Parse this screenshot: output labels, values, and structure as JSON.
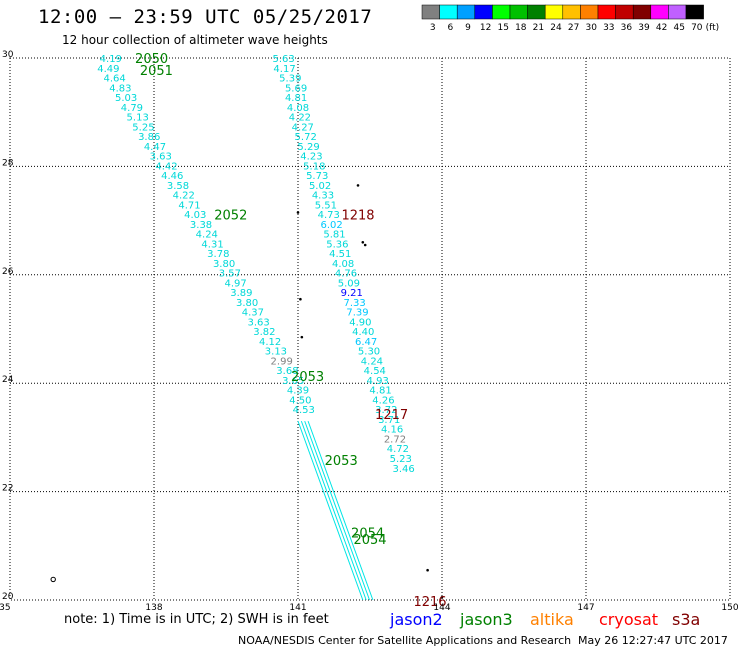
{
  "header": {
    "title": "12:00 – 23:59 UTC 05/25/2017",
    "subtitle": "12 hour collection of altimeter wave heights"
  },
  "color_scale": {
    "unit": "(ft)",
    "bins": [
      {
        "label": "3",
        "color": "#808080"
      },
      {
        "label": "6",
        "color": "#00ffff"
      },
      {
        "label": "9",
        "color": "#00a0ff"
      },
      {
        "label": "12",
        "color": "#0000ff"
      },
      {
        "label": "15",
        "color": "#00ff00"
      },
      {
        "label": "18",
        "color": "#00c000"
      },
      {
        "label": "21",
        "color": "#008000"
      },
      {
        "label": "24",
        "color": "#ffff00"
      },
      {
        "label": "27",
        "color": "#ffc000"
      },
      {
        "label": "30",
        "color": "#ff8000"
      },
      {
        "label": "33",
        "color": "#ff0000"
      },
      {
        "label": "36",
        "color": "#c00000"
      },
      {
        "label": "39",
        "color": "#800000"
      },
      {
        "label": "42",
        "color": "#ff00ff"
      },
      {
        "label": "45",
        "color": "#c060ff"
      },
      {
        "label": "70",
        "color": "#000000"
      }
    ]
  },
  "chart_data": {
    "type": "scatter",
    "xlim": [
      135,
      150
    ],
    "ylim": [
      20,
      30
    ],
    "x_ticks": [
      "135",
      "138",
      "141",
      "144",
      "147",
      "150"
    ],
    "y_ticks": [
      "20",
      "22",
      "24",
      "26",
      "28",
      "30"
    ],
    "grid": true,
    "tracks": [
      {
        "points": [
          [
            137.1,
            30.0,
            "4.19"
          ],
          [
            137.05,
            29.82,
            "4.49"
          ],
          [
            137.18,
            29.64,
            "4.64"
          ],
          [
            137.3,
            29.46,
            "4.83"
          ],
          [
            137.42,
            29.28,
            "5.03"
          ],
          [
            137.54,
            29.1,
            "4.79"
          ],
          [
            137.66,
            28.92,
            "5.13"
          ],
          [
            137.78,
            28.74,
            "5.25"
          ],
          [
            137.9,
            28.56,
            "3.86"
          ],
          [
            138.02,
            28.38,
            "4.47"
          ],
          [
            138.14,
            28.2,
            "3.63"
          ],
          [
            138.26,
            28.02,
            "4.42"
          ],
          [
            138.38,
            27.84,
            "4.46"
          ],
          [
            138.5,
            27.66,
            "3.58"
          ],
          [
            138.62,
            27.48,
            "4.22"
          ],
          [
            138.74,
            27.3,
            "4.71"
          ],
          [
            138.86,
            27.12,
            "4.03"
          ],
          [
            138.98,
            26.94,
            "3.38"
          ],
          [
            139.1,
            26.76,
            "4.24"
          ],
          [
            139.22,
            26.58,
            "4.31"
          ],
          [
            139.34,
            26.4,
            "3.78"
          ],
          [
            139.46,
            26.22,
            "3.80"
          ],
          [
            139.58,
            26.04,
            "3.57"
          ],
          [
            139.7,
            25.86,
            "4.97"
          ],
          [
            139.82,
            25.68,
            "3.89"
          ],
          [
            139.94,
            25.5,
            "3.80"
          ],
          [
            140.06,
            25.32,
            "4.37"
          ],
          [
            140.18,
            25.14,
            "3.63"
          ],
          [
            140.3,
            24.96,
            "3.82"
          ],
          [
            140.42,
            24.78,
            "4.12"
          ],
          [
            140.54,
            24.6,
            "3.13"
          ],
          [
            140.66,
            24.42,
            "2.99"
          ],
          [
            140.78,
            24.24,
            "3.68"
          ],
          [
            140.9,
            24.06,
            "3.65"
          ],
          [
            141.0,
            23.88,
            "4.39"
          ],
          [
            141.05,
            23.7,
            "4.50"
          ],
          [
            141.12,
            23.52,
            "4.53"
          ]
        ]
      },
      {
        "points": [
          [
            140.7,
            30.0,
            "5.63"
          ],
          [
            140.72,
            29.82,
            "4.17"
          ],
          [
            140.84,
            29.64,
            "5.39"
          ],
          [
            140.96,
            29.46,
            "5.69"
          ],
          [
            140.96,
            29.28,
            "4.81"
          ],
          [
            141.0,
            29.1,
            "4.08"
          ],
          [
            141.04,
            28.92,
            "4.22"
          ],
          [
            141.1,
            28.74,
            "4.27"
          ],
          [
            141.16,
            28.56,
            "5.72"
          ],
          [
            141.22,
            28.38,
            "5.29"
          ],
          [
            141.28,
            28.2,
            "4.23"
          ],
          [
            141.34,
            28.02,
            "5.18"
          ],
          [
            141.4,
            27.84,
            "5.73"
          ],
          [
            141.46,
            27.66,
            "5.02"
          ],
          [
            141.52,
            27.48,
            "4.33"
          ],
          [
            141.58,
            27.3,
            "5.51"
          ],
          [
            141.64,
            27.12,
            "4.73"
          ],
          [
            141.7,
            26.94,
            "6.02"
          ],
          [
            141.76,
            26.76,
            "5.81"
          ],
          [
            141.82,
            26.58,
            "5.36"
          ],
          [
            141.88,
            26.4,
            "4.51"
          ],
          [
            141.94,
            26.22,
            "4.08"
          ],
          [
            142.0,
            26.04,
            "4.76"
          ],
          [
            142.06,
            25.86,
            "5.09"
          ],
          [
            142.12,
            25.68,
            "9.21"
          ],
          [
            142.18,
            25.5,
            "7.33"
          ],
          [
            142.24,
            25.32,
            "7.39"
          ],
          [
            142.3,
            25.14,
            "4.90"
          ],
          [
            142.36,
            24.96,
            "4.40"
          ],
          [
            142.42,
            24.78,
            "6.47"
          ],
          [
            142.48,
            24.6,
            "5.30"
          ],
          [
            142.54,
            24.42,
            "4.24"
          ],
          [
            142.6,
            24.24,
            "4.54"
          ],
          [
            142.66,
            24.06,
            "4.93"
          ],
          [
            142.72,
            23.88,
            "4.81"
          ],
          [
            142.78,
            23.7,
            "4.26"
          ],
          [
            142.84,
            23.52,
            "3.72"
          ],
          [
            142.9,
            23.34,
            "3.71"
          ],
          [
            142.96,
            23.16,
            "4.16"
          ],
          [
            143.02,
            22.98,
            "2.72"
          ],
          [
            143.08,
            22.8,
            "4.72"
          ],
          [
            143.14,
            22.62,
            "5.23"
          ],
          [
            143.2,
            22.44,
            "3.46"
          ]
        ]
      }
    ],
    "pass_labels": [
      {
        "text": "2050",
        "x": 137.95,
        "y": 30.0,
        "color": "#008000"
      },
      {
        "text": "2051",
        "x": 138.05,
        "y": 29.78,
        "color": "#008000"
      },
      {
        "text": "2052",
        "x": 139.6,
        "y": 27.11,
        "color": "#008000"
      },
      {
        "text": "1218",
        "x": 142.25,
        "y": 27.11,
        "color": "#800000"
      },
      {
        "text": "2053",
        "x": 141.2,
        "y": 24.13,
        "color": "#008000"
      },
      {
        "text": "1217",
        "x": 142.95,
        "y": 23.43,
        "color": "#800000"
      },
      {
        "text": "2053",
        "x": 141.9,
        "y": 22.58,
        "color": "#008000"
      },
      {
        "text": "2054",
        "x": 142.45,
        "y": 21.25,
        "color": "#008000"
      },
      {
        "text": "2054",
        "x": 142.5,
        "y": 21.13,
        "color": "#008000"
      },
      {
        "text": "1216",
        "x": 143.75,
        "y": 19.98,
        "color": "#800000"
      }
    ]
  },
  "footer": {
    "note": "note: 1) Time is in UTC; 2) SWH is in feet",
    "satellites": [
      {
        "label": "jason2",
        "color": "#0000ff"
      },
      {
        "label": "jason3",
        "color": "#008000"
      },
      {
        "label": "altika",
        "color": "#ff8000"
      },
      {
        "label": "cryosat",
        "color": "#ff0000"
      },
      {
        "label": "s3a",
        "color": "#800000"
      }
    ],
    "credit": "NOAA/NESDIS Center for Satellite Applications and Research",
    "timestamp": "May 26 12:27:47 UTC 2017"
  }
}
